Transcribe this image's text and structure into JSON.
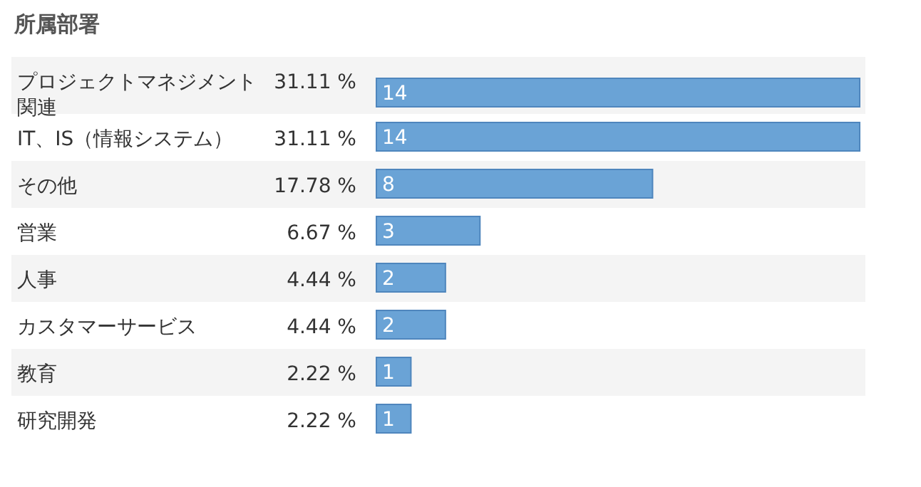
{
  "chart_data": {
    "type": "bar",
    "orientation": "horizontal",
    "title": "所属部署",
    "categories": [
      "プロジェクトマネジメント関連",
      "IT、IS（情報システム）",
      "その他",
      "営業",
      "人事",
      "カスタマーサービス",
      "教育",
      "研究開発"
    ],
    "values": [
      14,
      14,
      8,
      3,
      2,
      2,
      1,
      1
    ],
    "color": "#6aa3d6",
    "xlim": [
      0,
      14
    ],
    "data_labels": true,
    "annotations": [
      "31.11 %",
      "31.11 %",
      "17.78 %",
      "6.67 %",
      "4.44 %",
      "4.44 %",
      "2.22 %",
      "2.22 %"
    ]
  }
}
